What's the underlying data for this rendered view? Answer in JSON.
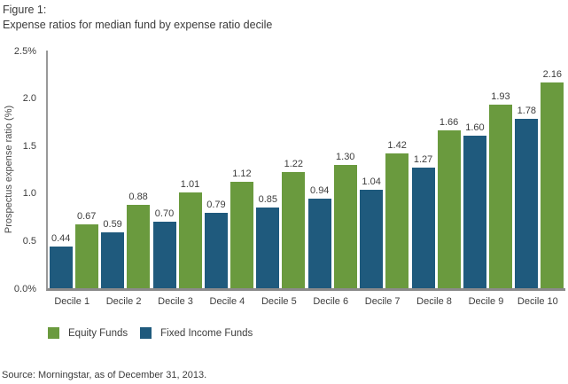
{
  "figure": {
    "label": "Figure 1:",
    "title": "Expense ratios for median fund by expense ratio decile"
  },
  "chart_data": {
    "type": "bar",
    "title": "Expense ratios for median fund by expense ratio decile",
    "categories": [
      "Decile 1",
      "Decile 2",
      "Decile 3",
      "Decile 4",
      "Decile 5",
      "Decile 6",
      "Decile 7",
      "Decile 8",
      "Decile 9",
      "Decile 10"
    ],
    "series": [
      {
        "name": "Fixed Income Funds",
        "color": "#1f5a7d",
        "values": [
          0.44,
          0.59,
          0.7,
          0.79,
          0.85,
          0.94,
          1.04,
          1.27,
          1.6,
          1.78
        ]
      },
      {
        "name": "Equity Funds",
        "color": "#6a9a3e",
        "values": [
          0.67,
          0.88,
          1.01,
          1.12,
          1.22,
          1.3,
          1.42,
          1.66,
          1.93,
          2.16
        ]
      }
    ],
    "xlabel": "",
    "ylabel": "Prospectus expense ratio (%)",
    "ylim": [
      0,
      2.5
    ],
    "yticks": [
      {
        "v": 0.0,
        "label": "0.0%"
      },
      {
        "v": 0.5,
        "label": "0.5"
      },
      {
        "v": 1.0,
        "label": "1.0"
      },
      {
        "v": 1.5,
        "label": "1.5"
      },
      {
        "v": 2.0,
        "label": "2.0"
      },
      {
        "v": 2.5,
        "label": "2.5%"
      }
    ],
    "grid": false,
    "value_labels": true,
    "legend_position": "bottom"
  },
  "legend": {
    "items": [
      {
        "label": "Equity Funds",
        "color": "#6a9a3e"
      },
      {
        "label": "Fixed Income Funds",
        "color": "#1f5a7d"
      }
    ]
  },
  "source": "Source: Morningstar, as of December 31, 2013."
}
